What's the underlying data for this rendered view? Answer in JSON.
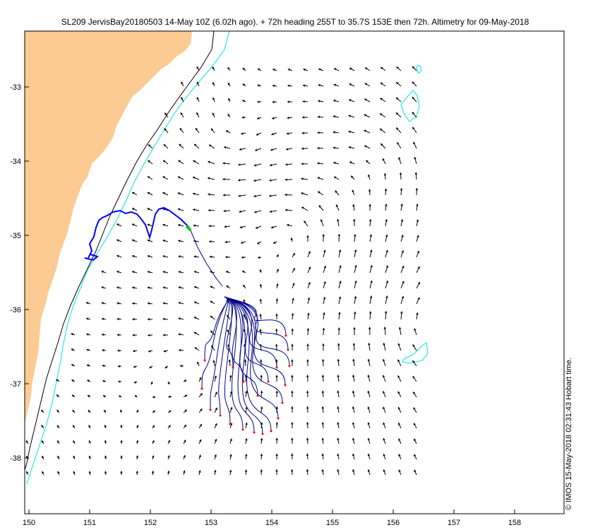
{
  "title": "SL209 JervisBay20180503 14-May 10Z (6.02h ago). + 72h heading 255T to 35.7S 153E then 72h. Altimetry for 09-May-2018",
  "credit": "© IMOS 15-May-2018 02:31:43 Hobart time.",
  "axes": {
    "x_ticks": [
      "150",
      "151",
      "152",
      "153",
      "154",
      "155",
      "156",
      "157",
      "158"
    ],
    "y_ticks": [
      "-33",
      "-34",
      "-35",
      "-36",
      "-37",
      "-38"
    ]
  },
  "colors": {
    "land": "#fccb94",
    "contour_shelf": "#000000",
    "contour_cyan": "#00e5e5",
    "glider_track": "#0000ff",
    "glider_position": "#00cc00",
    "forecast_tracks": "#00008b",
    "forecast_endpoints": "#ff0000",
    "vectors": "#000000"
  }
}
